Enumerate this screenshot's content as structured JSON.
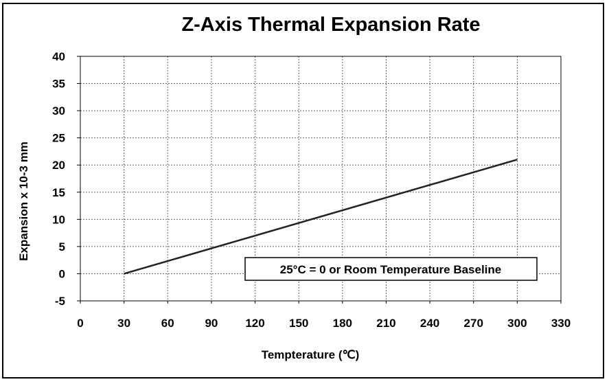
{
  "chart_data": {
    "type": "line",
    "title": "Z-Axis Thermal Expansion Rate",
    "xlabel": "Tempterature (℃)",
    "ylabel": "Expansion x 10-3 mm",
    "xlim": [
      0,
      330
    ],
    "ylim": [
      -5,
      40
    ],
    "x_ticks": [
      "0",
      "30",
      "60",
      "90",
      "120",
      "150",
      "180",
      "210",
      "240",
      "270",
      "300",
      "330"
    ],
    "y_ticks": [
      "40",
      "35",
      "30",
      "25",
      "20",
      "15",
      "10",
      "5",
      "0",
      "-5"
    ],
    "grid": true,
    "series": [
      {
        "x": [
          30,
          300
        ],
        "y": [
          0,
          21
        ],
        "color": "#222222"
      }
    ],
    "annotations": [
      {
        "text": "25°C = 0 or Room Temperature Baseline"
      }
    ]
  }
}
